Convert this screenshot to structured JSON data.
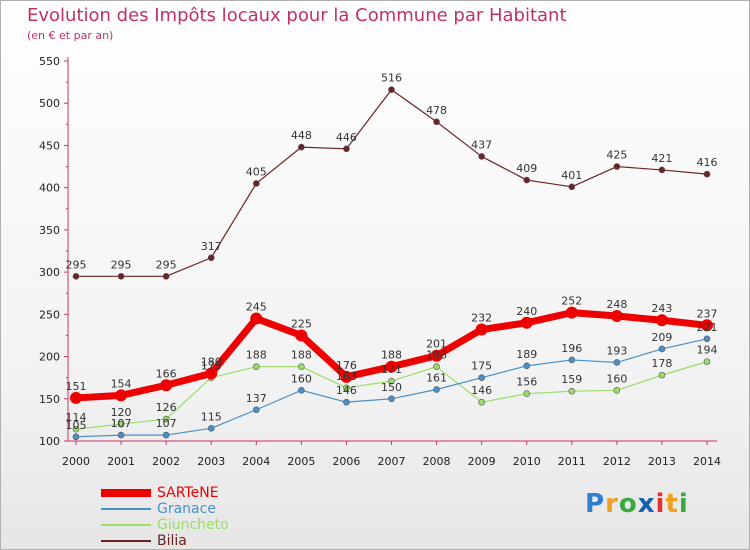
{
  "title": "Evolution des Impôts locaux pour la Commune par Habitant",
  "subtitle": "(en € et par an)",
  "logo": "Proxiti",
  "chart_data": {
    "type": "line",
    "title": "Evolution des Impôts locaux pour la Commune par Habitant",
    "subtitle": "(en € et par an)",
    "x": [
      "2000",
      "2001",
      "2002",
      "2003",
      "2004",
      "2005",
      "2006",
      "2007",
      "2008",
      "2009",
      "2010",
      "2011",
      "2012",
      "2013",
      "2014"
    ],
    "ylim": [
      100,
      550
    ],
    "yticks": [
      100,
      150,
      200,
      250,
      300,
      350,
      400,
      450,
      500,
      550
    ],
    "grid": false,
    "legend_position": "bottom-left",
    "series": [
      {
        "name": "SARTeNE",
        "color": "#ee0000",
        "values": [
          151,
          154,
          166,
          180,
          245,
          225,
          176,
          188,
          201,
          232,
          240,
          252,
          248,
          243,
          237
        ]
      },
      {
        "name": "Granace",
        "color": "#4a90c8",
        "values": [
          105,
          107,
          107,
          115,
          137,
          160,
          146,
          150,
          161,
          175,
          189,
          196,
          193,
          209,
          221
        ]
      },
      {
        "name": "Giuncheto",
        "color": "#99dd66",
        "values": [
          114,
          120,
          126,
          175,
          188,
          188,
          163,
          171,
          188,
          146,
          156,
          159,
          160,
          178,
          194
        ]
      },
      {
        "name": "Bilia",
        "color": "#6b2323",
        "values": [
          295,
          295,
          295,
          317,
          405,
          448,
          446,
          516,
          478,
          437,
          409,
          401,
          425,
          421,
          416
        ]
      }
    ]
  }
}
